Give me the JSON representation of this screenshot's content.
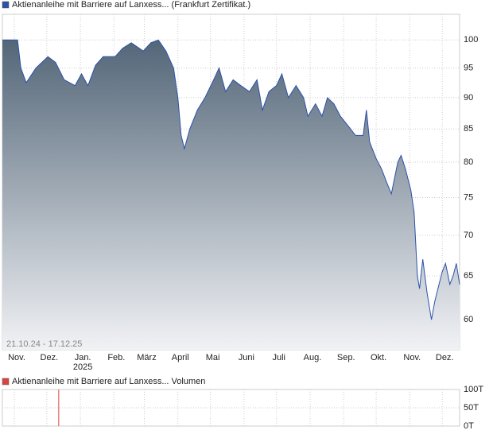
{
  "chart_data": [
    {
      "type": "area",
      "date_range": "21.10.24 - 17.12.25",
      "log_y": true,
      "grid": true,
      "legend": "top-left",
      "fill_gradient": [
        "#536678",
        "#f1f2f5"
      ],
      "xlim": [
        "2024-10-21",
        "2025-12-17"
      ],
      "xticks": [
        {
          "value": "2024-11-01",
          "label": "Nov."
        },
        {
          "value": "2024-12-01",
          "label": "Dez."
        },
        {
          "value": "2025-01-01",
          "label": "Jan.\n2025"
        },
        {
          "value": "2025-02-01",
          "label": "Feb."
        },
        {
          "value": "2025-03-01",
          "label": "März"
        },
        {
          "value": "2025-04-01",
          "label": "April"
        },
        {
          "value": "2025-05-01",
          "label": "Mai"
        },
        {
          "value": "2025-06-01",
          "label": "Juni"
        },
        {
          "value": "2025-07-01",
          "label": "Juli"
        },
        {
          "value": "2025-08-01",
          "label": "Aug."
        },
        {
          "value": "2025-09-01",
          "label": "Sep."
        },
        {
          "value": "2025-10-01",
          "label": "Okt."
        },
        {
          "value": "2025-11-01",
          "label": "Nov."
        },
        {
          "value": "2025-12-01",
          "label": "Dez."
        }
      ],
      "ylim": [
        56.8,
        104.8
      ],
      "yticks": [
        60,
        65,
        70,
        75,
        80,
        85,
        90,
        95,
        100
      ],
      "series": [
        {
          "name": "Aktienanleihe mit Barriere auf Lanxess... (Frankfurt Zertifikat.)",
          "color": "#2c52a8",
          "x": [
            "2024-10-21",
            "2024-11-04",
            "2024-11-07",
            "2024-11-12",
            "2024-11-21",
            "2024-12-02",
            "2024-12-09",
            "2024-12-17",
            "2024-12-27",
            "2025-01-02",
            "2025-01-08",
            "2025-01-15",
            "2025-01-22",
            "2025-02-02",
            "2025-02-09",
            "2025-02-17",
            "2025-02-28",
            "2025-03-07",
            "2025-03-14",
            "2025-03-21",
            "2025-03-28",
            "2025-04-01",
            "2025-04-04",
            "2025-04-07",
            "2025-04-12",
            "2025-04-19",
            "2025-04-26",
            "2025-05-04",
            "2025-05-09",
            "2025-05-15",
            "2025-05-22",
            "2025-05-29",
            "2025-06-06",
            "2025-06-13",
            "2025-06-18",
            "2025-06-24",
            "2025-07-01",
            "2025-07-06",
            "2025-07-12",
            "2025-07-19",
            "2025-07-26",
            "2025-07-30",
            "2025-08-06",
            "2025-08-12",
            "2025-08-17",
            "2025-08-23",
            "2025-08-29",
            "2025-09-05",
            "2025-09-12",
            "2025-09-19",
            "2025-09-22",
            "2025-09-25",
            "2025-10-01",
            "2025-10-06",
            "2025-10-11",
            "2025-10-15",
            "2025-10-17",
            "2025-10-21",
            "2025-10-24",
            "2025-10-28",
            "2025-11-02",
            "2025-11-05",
            "2025-11-08",
            "2025-11-10",
            "2025-11-13",
            "2025-11-17",
            "2025-11-21",
            "2025-11-24",
            "2025-11-28",
            "2025-12-01",
            "2025-12-04",
            "2025-12-08",
            "2025-12-11",
            "2025-12-14",
            "2025-12-17"
          ],
          "values": [
            100,
            100,
            95,
            92.5,
            95,
            97,
            96,
            93,
            92,
            94,
            92,
            95.5,
            97,
            97,
            98.5,
            99.5,
            98,
            99.5,
            100,
            98,
            95,
            90,
            84,
            82,
            85,
            88,
            90,
            93,
            95,
            91,
            93,
            92,
            91,
            93,
            88,
            91,
            92,
            94,
            90,
            92,
            90,
            87,
            89,
            87,
            90,
            89,
            87,
            85.5,
            84,
            84,
            88,
            83,
            80.5,
            79,
            77,
            75.5,
            77,
            80,
            81,
            79,
            76,
            73,
            65,
            63.5,
            67,
            63,
            60,
            62,
            64,
            65.5,
            66.5,
            64,
            65,
            66.5,
            64
          ]
        }
      ]
    },
    {
      "type": "bar",
      "grid": true,
      "xlim": [
        "2024-10-21",
        "2025-12-17"
      ],
      "ylim": [
        0,
        100000
      ],
      "yticks": [
        {
          "value": 0,
          "label": "0T"
        },
        {
          "value": 50000,
          "label": "50T"
        },
        {
          "value": 100000,
          "label": "100T"
        }
      ],
      "series": [
        {
          "name": "Aktienanleihe mit Barriere auf Lanxess... Volumen",
          "color": "#d9443f",
          "x": [
            "2024-12-12"
          ],
          "values": [
            100000
          ]
        }
      ]
    }
  ]
}
